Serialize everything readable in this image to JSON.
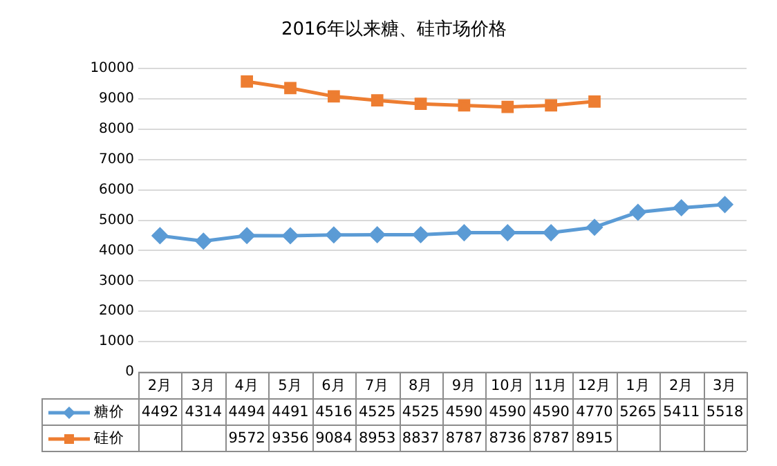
{
  "chart_data": {
    "type": "line",
    "title": "2016年以来糖、硅市场价格",
    "categories": [
      "2月",
      "3月",
      "4月",
      "5月",
      "6月",
      "7月",
      "8月",
      "9月",
      "10月",
      "11月",
      "12月",
      "1月",
      "2月",
      "3月"
    ],
    "series": [
      {
        "name": "糖价",
        "color": "#5b9bd5",
        "marker": "diamond",
        "values": [
          4492,
          4314,
          4494,
          4491,
          4516,
          4525,
          4525,
          4590,
          4590,
          4590,
          4770,
          5265,
          5411,
          5518
        ]
      },
      {
        "name": "硅价",
        "color": "#ed7d31",
        "marker": "square",
        "values": [
          null,
          null,
          9572,
          9356,
          9084,
          8953,
          8837,
          8787,
          8736,
          8787,
          8915,
          null,
          null,
          null
        ]
      }
    ],
    "ylim": [
      0,
      10000
    ],
    "yticks": [
      0,
      1000,
      2000,
      3000,
      4000,
      5000,
      6000,
      7000,
      8000,
      9000,
      10000
    ],
    "grid": "y",
    "legend": "bottom",
    "data_labels": true,
    "line_style": "solid"
  }
}
